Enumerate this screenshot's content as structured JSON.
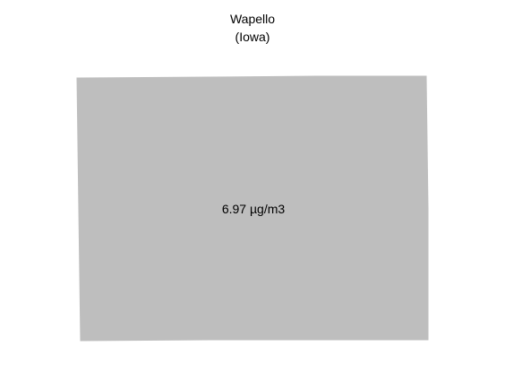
{
  "header": {
    "title": "Wapello",
    "subtitle": "(Iowa)"
  },
  "map": {
    "region_name": "Wapello",
    "value_label": "6.97 µg/m3",
    "fill_color": "#bebebe"
  }
}
